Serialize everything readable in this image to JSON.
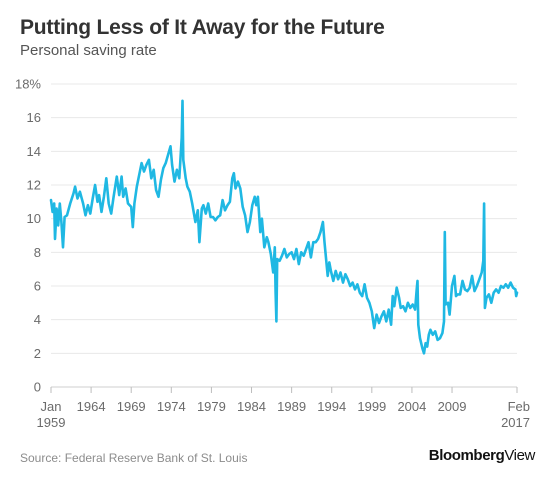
{
  "header": {
    "title": "Putting Less of It Away for the Future",
    "subtitle": "Personal saving rate"
  },
  "footer": {
    "source": "Source: Federal Reserve Bank of St. Louis",
    "brand_bold": "Bloomberg",
    "brand_light": "View"
  },
  "colors": {
    "line": "#1fb8e3",
    "text": "#333333",
    "axis_text": "#6b6b6b",
    "grid": "#e8e8e8"
  },
  "chart_data": {
    "type": "line",
    "title": "Putting Less of It Away for the Future",
    "subtitle": "Personal saving rate",
    "ylim": [
      0,
      18
    ],
    "xlim": [
      1959.0,
      2017.1
    ],
    "y_ticks": [
      {
        "value": 0,
        "label": "0"
      },
      {
        "value": 2,
        "label": "2"
      },
      {
        "value": 4,
        "label": "4"
      },
      {
        "value": 6,
        "label": "6"
      },
      {
        "value": 8,
        "label": "8"
      },
      {
        "value": 10,
        "label": "10"
      },
      {
        "value": 12,
        "label": "12"
      },
      {
        "value": 14,
        "label": "14"
      },
      {
        "value": 16,
        "label": "16"
      },
      {
        "value": 18,
        "label": "18%"
      }
    ],
    "x_ticks": [
      {
        "value": 1959.0,
        "label": "Jan",
        "label2": "1959"
      },
      {
        "value": 1964.0,
        "label": "1964"
      },
      {
        "value": 1969.0,
        "label": "1969"
      },
      {
        "value": 1974.0,
        "label": "1974"
      },
      {
        "value": 1979.0,
        "label": "1979"
      },
      {
        "value": 1984.0,
        "label": "1984"
      },
      {
        "value": 1989.0,
        "label": "1989"
      },
      {
        "value": 1994.0,
        "label": "1994"
      },
      {
        "value": 1999.0,
        "label": "1999"
      },
      {
        "value": 2004.0,
        "label": "2004"
      },
      {
        "value": 2009.0,
        "label": "2009"
      },
      {
        "value": 2017.1,
        "label": "Feb",
        "label2": "2017"
      }
    ],
    "grid": true,
    "series": [
      {
        "values": [
          [
            1959.0,
            11.1
          ],
          [
            1959.2,
            10.4
          ],
          [
            1959.4,
            10.9
          ],
          [
            1959.5,
            8.8
          ],
          [
            1959.7,
            10.6
          ],
          [
            1959.9,
            9.6
          ],
          [
            1960.1,
            10.9
          ],
          [
            1960.3,
            9.8
          ],
          [
            1960.5,
            8.3
          ],
          [
            1960.7,
            10.1
          ],
          [
            1961.0,
            10.2
          ],
          [
            1961.4,
            10.9
          ],
          [
            1961.8,
            11.5
          ],
          [
            1962.0,
            11.9
          ],
          [
            1962.3,
            11.2
          ],
          [
            1962.6,
            11.6
          ],
          [
            1963.0,
            10.9
          ],
          [
            1963.3,
            10.2
          ],
          [
            1963.6,
            10.8
          ],
          [
            1963.9,
            10.3
          ],
          [
            1964.2,
            11.2
          ],
          [
            1964.5,
            12.0
          ],
          [
            1964.8,
            11.0
          ],
          [
            1965.0,
            11.4
          ],
          [
            1965.3,
            10.4
          ],
          [
            1965.6,
            11.3
          ],
          [
            1965.9,
            12.4
          ],
          [
            1966.2,
            10.9
          ],
          [
            1966.5,
            10.3
          ],
          [
            1966.8,
            11.3
          ],
          [
            1967.0,
            11.9
          ],
          [
            1967.2,
            12.5
          ],
          [
            1967.5,
            11.4
          ],
          [
            1967.8,
            12.5
          ],
          [
            1968.0,
            11.3
          ],
          [
            1968.3,
            11.8
          ],
          [
            1968.6,
            10.9
          ],
          [
            1969.0,
            10.7
          ],
          [
            1969.2,
            9.5
          ],
          [
            1969.4,
            10.9
          ],
          [
            1969.7,
            11.9
          ],
          [
            1970.0,
            12.6
          ],
          [
            1970.3,
            13.3
          ],
          [
            1970.6,
            12.8
          ],
          [
            1970.9,
            13.2
          ],
          [
            1971.2,
            13.5
          ],
          [
            1971.5,
            12.4
          ],
          [
            1971.8,
            12.9
          ],
          [
            1972.1,
            11.7
          ],
          [
            1972.4,
            11.3
          ],
          [
            1972.7,
            12.3
          ],
          [
            1973.0,
            13.0
          ],
          [
            1973.3,
            13.3
          ],
          [
            1973.6,
            13.8
          ],
          [
            1973.9,
            14.3
          ],
          [
            1974.1,
            13.2
          ],
          [
            1974.4,
            12.2
          ],
          [
            1974.7,
            12.9
          ],
          [
            1975.0,
            12.4
          ],
          [
            1975.3,
            14.8
          ],
          [
            1975.4,
            17.0
          ],
          [
            1975.5,
            13.5
          ],
          [
            1975.8,
            12.4
          ],
          [
            1976.0,
            11.9
          ],
          [
            1976.3,
            11.6
          ],
          [
            1976.6,
            10.9
          ],
          [
            1977.0,
            9.8
          ],
          [
            1977.3,
            10.5
          ],
          [
            1977.5,
            8.6
          ],
          [
            1977.8,
            10.6
          ],
          [
            1978.0,
            10.8
          ],
          [
            1978.3,
            10.3
          ],
          [
            1978.6,
            10.9
          ],
          [
            1978.9,
            10.1
          ],
          [
            1979.2,
            10.1
          ],
          [
            1979.5,
            9.9
          ],
          [
            1979.8,
            10.1
          ],
          [
            1980.1,
            10.2
          ],
          [
            1980.4,
            11.1
          ],
          [
            1980.7,
            10.5
          ],
          [
            1981.0,
            10.8
          ],
          [
            1981.3,
            11.0
          ],
          [
            1981.6,
            12.4
          ],
          [
            1981.8,
            12.7
          ],
          [
            1982.0,
            11.8
          ],
          [
            1982.3,
            12.2
          ],
          [
            1982.6,
            11.8
          ],
          [
            1982.9,
            10.7
          ],
          [
            1983.2,
            10.2
          ],
          [
            1983.5,
            9.2
          ],
          [
            1983.8,
            9.8
          ],
          [
            1984.1,
            10.8
          ],
          [
            1984.4,
            11.3
          ],
          [
            1984.6,
            10.8
          ],
          [
            1984.8,
            11.3
          ],
          [
            1985.1,
            9.2
          ],
          [
            1985.3,
            10.0
          ],
          [
            1985.6,
            8.3
          ],
          [
            1985.9,
            8.9
          ],
          [
            1986.1,
            8.6
          ],
          [
            1986.4,
            7.9
          ],
          [
            1986.7,
            6.8
          ],
          [
            1986.9,
            8.3
          ],
          [
            1987.0,
            5.6
          ],
          [
            1987.1,
            3.9
          ],
          [
            1987.2,
            7.6
          ],
          [
            1987.5,
            7.5
          ],
          [
            1987.8,
            7.8
          ],
          [
            1988.1,
            8.2
          ],
          [
            1988.4,
            7.7
          ],
          [
            1988.7,
            7.9
          ],
          [
            1989.0,
            8.0
          ],
          [
            1989.3,
            7.6
          ],
          [
            1989.6,
            8.2
          ],
          [
            1989.9,
            7.3
          ],
          [
            1990.2,
            8.0
          ],
          [
            1990.5,
            7.8
          ],
          [
            1990.8,
            8.2
          ],
          [
            1991.1,
            8.6
          ],
          [
            1991.4,
            7.7
          ],
          [
            1991.7,
            8.6
          ],
          [
            1992.0,
            8.6
          ],
          [
            1992.3,
            8.8
          ],
          [
            1992.6,
            9.2
          ],
          [
            1992.9,
            9.8
          ],
          [
            1993.1,
            8.6
          ],
          [
            1993.3,
            7.6
          ],
          [
            1993.5,
            6.6
          ],
          [
            1993.7,
            7.4
          ],
          [
            1993.9,
            6.9
          ],
          [
            1994.2,
            6.3
          ],
          [
            1994.5,
            6.9
          ],
          [
            1994.8,
            6.4
          ],
          [
            1995.1,
            6.8
          ],
          [
            1995.4,
            6.2
          ],
          [
            1995.7,
            6.7
          ],
          [
            1996.0,
            6.4
          ],
          [
            1996.3,
            6.0
          ],
          [
            1996.6,
            6.2
          ],
          [
            1996.9,
            5.8
          ],
          [
            1997.2,
            6.1
          ],
          [
            1997.5,
            5.6
          ],
          [
            1997.8,
            5.4
          ],
          [
            1998.1,
            6.1
          ],
          [
            1998.4,
            5.3
          ],
          [
            1998.7,
            5.0
          ],
          [
            1999.0,
            4.5
          ],
          [
            1999.3,
            3.5
          ],
          [
            1999.6,
            4.3
          ],
          [
            1999.9,
            3.8
          ],
          [
            2000.2,
            4.2
          ],
          [
            2000.5,
            4.5
          ],
          [
            2000.8,
            3.9
          ],
          [
            2001.1,
            4.6
          ],
          [
            2001.4,
            3.7
          ],
          [
            2001.6,
            5.4
          ],
          [
            2001.8,
            4.8
          ],
          [
            2002.1,
            5.9
          ],
          [
            2002.4,
            5.3
          ],
          [
            2002.6,
            4.7
          ],
          [
            2002.9,
            4.8
          ],
          [
            2003.2,
            4.5
          ],
          [
            2003.5,
            5.0
          ],
          [
            2003.8,
            4.7
          ],
          [
            2004.1,
            4.9
          ],
          [
            2004.4,
            4.6
          ],
          [
            2004.6,
            5.8
          ],
          [
            2004.7,
            6.3
          ],
          [
            2004.8,
            3.7
          ],
          [
            2005.0,
            2.9
          ],
          [
            2005.3,
            2.3
          ],
          [
            2005.5,
            2.0
          ],
          [
            2005.7,
            2.6
          ],
          [
            2005.9,
            2.4
          ],
          [
            2006.1,
            3.1
          ],
          [
            2006.3,
            3.4
          ],
          [
            2006.6,
            3.1
          ],
          [
            2006.9,
            3.3
          ],
          [
            2007.2,
            2.8
          ],
          [
            2007.5,
            2.9
          ],
          [
            2007.8,
            3.2
          ],
          [
            2008.0,
            3.9
          ],
          [
            2008.1,
            9.2
          ],
          [
            2008.2,
            4.9
          ],
          [
            2008.5,
            5.0
          ],
          [
            2008.7,
            4.3
          ],
          [
            2009.0,
            6.0
          ],
          [
            2009.3,
            6.6
          ],
          [
            2009.5,
            5.4
          ],
          [
            2009.7,
            5.5
          ],
          [
            2010.0,
            5.5
          ],
          [
            2010.3,
            6.3
          ],
          [
            2010.6,
            5.8
          ],
          [
            2010.9,
            5.7
          ],
          [
            2011.2,
            5.9
          ],
          [
            2011.5,
            6.6
          ],
          [
            2011.8,
            5.7
          ],
          [
            2012.1,
            6.0
          ],
          [
            2012.4,
            6.4
          ],
          [
            2012.7,
            6.8
          ],
          [
            2012.9,
            7.5
          ],
          [
            2013.0,
            10.9
          ],
          [
            2013.1,
            4.7
          ],
          [
            2013.3,
            5.3
          ],
          [
            2013.6,
            5.5
          ],
          [
            2013.9,
            5.0
          ],
          [
            2014.2,
            5.6
          ],
          [
            2014.5,
            5.8
          ],
          [
            2014.8,
            5.6
          ],
          [
            2015.1,
            6.0
          ],
          [
            2015.4,
            5.9
          ],
          [
            2015.7,
            6.1
          ],
          [
            2016.0,
            5.9
          ],
          [
            2016.3,
            6.2
          ],
          [
            2016.6,
            5.9
          ],
          [
            2016.9,
            5.8
          ],
          [
            2017.0,
            5.4
          ],
          [
            2017.1,
            5.6
          ]
        ]
      }
    ]
  }
}
